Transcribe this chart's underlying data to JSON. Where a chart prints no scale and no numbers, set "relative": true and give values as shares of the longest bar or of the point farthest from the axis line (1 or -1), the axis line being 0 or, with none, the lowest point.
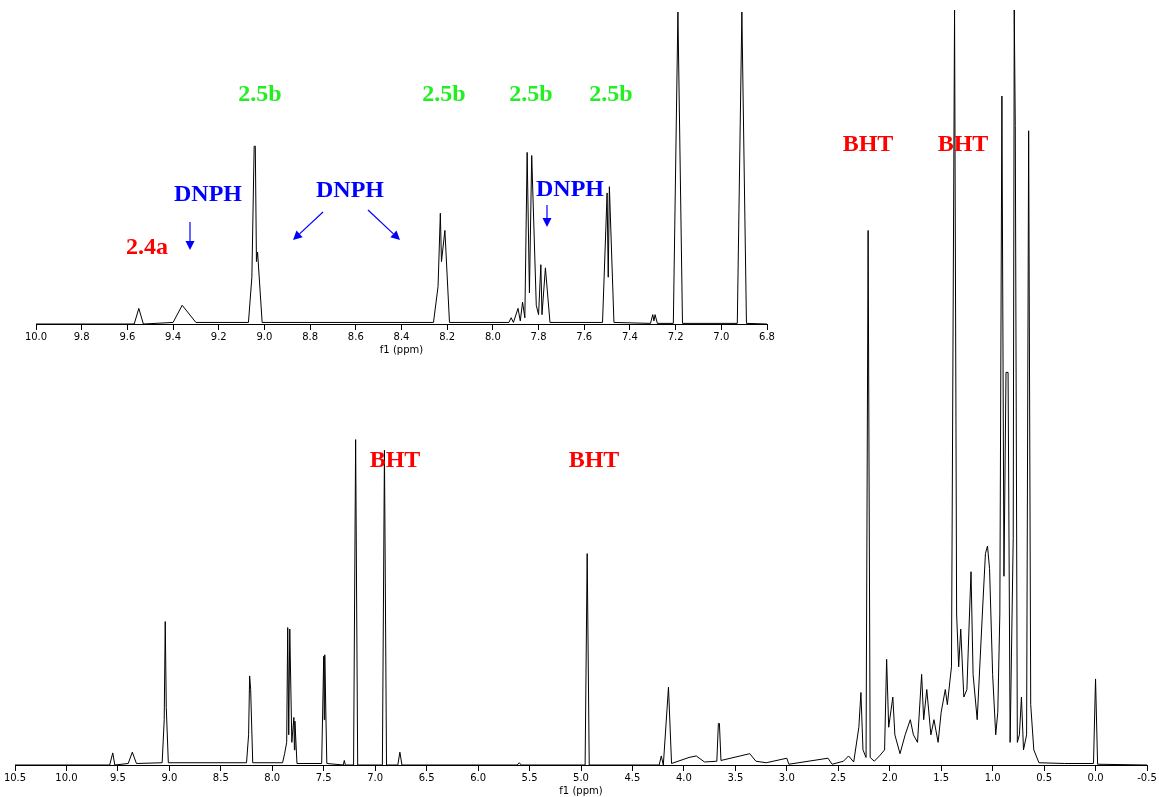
{
  "chart_data": [
    {
      "type": "line",
      "relative": true,
      "xlabel": "f1 (ppm)",
      "xlim": [
        10.0,
        6.8
      ],
      "xticks": [
        {
          "value": 10,
          "label": "10.0"
        },
        9.8,
        9.6,
        9.4,
        9.2,
        {
          "value": 9,
          "label": "9.0"
        },
        8.8,
        8.6,
        8.4,
        8.2,
        {
          "value": 8,
          "label": "8.0"
        },
        7.8,
        7.6,
        7.4,
        7.2,
        {
          "value": 7,
          "label": "7.0"
        },
        6.8
      ],
      "x": [
        10.0,
        9.57,
        9.55,
        9.53,
        9.4,
        9.36,
        9.3,
        9.07,
        9.055,
        9.045,
        9.04,
        9.035,
        9.03,
        9.01,
        8.26,
        8.24,
        8.23,
        8.225,
        8.21,
        8.19,
        7.93,
        7.92,
        7.91,
        7.89,
        7.88,
        7.87,
        7.86,
        7.85,
        7.84,
        7.83,
        7.81,
        7.8,
        7.79,
        7.785,
        7.77,
        7.75,
        7.52,
        7.5,
        7.495,
        7.49,
        7.47,
        7.31,
        7.3,
        7.295,
        7.29,
        7.28,
        7.21,
        7.19,
        7.17,
        6.93,
        6.91,
        6.89,
        6.8
      ],
      "series": [
        {
          "color": "#000000",
          "values": [
            0,
            0,
            0.05,
            0,
            0.005,
            0.06,
            0.005,
            0.005,
            0.15,
            0.57,
            0.57,
            0.2,
            0.23,
            0.005,
            0.005,
            0.12,
            0.355,
            0.2,
            0.3,
            0.005,
            0.005,
            0.02,
            0.005,
            0.05,
            0.01,
            0.07,
            0.02,
            0.55,
            0.1,
            0.54,
            0.06,
            0.03,
            0.19,
            0.03,
            0.18,
            0.005,
            0.005,
            0.42,
            0.15,
            0.44,
            0.005,
            0.002,
            0.03,
            0.01,
            0.03,
            0.002,
            0.002,
            1.0,
            0.002,
            0.002,
            1.0,
            0.002,
            0
          ]
        }
      ],
      "annotations": [
        "2.4a",
        "DNPH",
        "DNPH",
        "DNPH",
        "2.5b",
        "2.5b",
        "2.5b",
        "2.5b"
      ]
    },
    {
      "type": "line",
      "relative": true,
      "xlabel": "f1 (ppm)",
      "xlim": [
        10.5,
        -0.5
      ],
      "xticks": [
        10.5,
        {
          "value": 10,
          "label": "10.0"
        },
        9.5,
        {
          "value": 9,
          "label": "9.0"
        },
        8.5,
        {
          "value": 8,
          "label": "8.0"
        },
        7.5,
        {
          "value": 7,
          "label": "7.0"
        },
        6.5,
        {
          "value": 6,
          "label": "6.0"
        },
        5.5,
        {
          "value": 5,
          "label": "5.0"
        },
        4.5,
        {
          "value": 4,
          "label": "4.0"
        },
        3.5,
        {
          "value": 3,
          "label": "3.0"
        },
        2.5,
        {
          "value": 2,
          "label": "2.0"
        },
        1.5,
        {
          "value": 1,
          "label": "1.0"
        },
        0.5,
        {
          "value": 0,
          "label": "0.0"
        },
        -0.5
      ],
      "x": [
        10.5,
        9.58,
        9.55,
        9.53,
        9.4,
        9.36,
        9.32,
        9.07,
        9.05,
        9.04,
        9.03,
        9.01,
        8.25,
        8.23,
        8.22,
        8.21,
        8.19,
        7.9,
        7.88,
        7.86,
        7.85,
        7.84,
        7.83,
        7.81,
        7.79,
        7.785,
        7.78,
        7.76,
        7.52,
        7.5,
        7.495,
        7.49,
        7.47,
        7.31,
        7.3,
        7.29,
        7.21,
        7.19,
        7.17,
        6.93,
        6.91,
        6.89,
        6.78,
        6.76,
        6.74,
        5.62,
        5.6,
        5.58,
        4.96,
        4.94,
        4.92,
        4.24,
        4.22,
        4.2,
        4.15,
        4.12,
        3.95,
        3.88,
        3.8,
        3.68,
        3.665,
        3.655,
        3.64,
        3.36,
        3.3,
        3.2,
        3.0,
        2.98,
        2.6,
        2.56,
        2.45,
        2.4,
        2.35,
        2.3,
        2.28,
        2.26,
        2.23,
        2.21,
        2.19,
        2.15,
        2.1,
        2.05,
        2.03,
        2.01,
        1.97,
        1.95,
        1.9,
        1.85,
        1.8,
        1.77,
        1.73,
        1.69,
        1.67,
        1.64,
        1.6,
        1.57,
        1.53,
        1.5,
        1.46,
        1.44,
        1.4,
        1.37,
        1.35,
        1.33,
        1.31,
        1.28,
        1.25,
        1.23,
        1.21,
        1.19,
        1.15,
        1.1,
        1.07,
        1.05,
        1.03,
        1.0,
        0.97,
        0.95,
        0.93,
        0.91,
        0.89,
        0.87,
        0.85,
        0.83,
        0.8,
        0.79,
        0.78,
        0.76,
        0.74,
        0.72,
        0.7,
        0.67,
        0.65,
        0.63,
        0.6,
        0.55,
        0.3,
        0.02,
        0.0,
        -0.02,
        -0.5
      ],
      "series": [
        {
          "color": "#000000",
          "values": [
            0,
            0,
            0.016,
            0,
            0.002,
            0.017,
            0.002,
            0.003,
            0.06,
            0.19,
            0.076,
            0.003,
            0.003,
            0.04,
            0.118,
            0.1,
            0.003,
            0.003,
            0.015,
            0.03,
            0.182,
            0.04,
            0.18,
            0.03,
            0.063,
            0.02,
            0.058,
            0.002,
            0.002,
            0.144,
            0.06,
            0.146,
            0.002,
            0,
            0.006,
            0,
            0,
            0.431,
            0,
            0,
            0.417,
            0,
            0,
            0.017,
            0,
            0,
            0.003,
            0,
            0,
            0.28,
            0,
            0,
            0.012,
            0,
            0.103,
            0.002,
            0.01,
            0.012,
            0.004,
            0.005,
            0.055,
            0.055,
            0.006,
            0.015,
            0.005,
            0.003,
            0.009,
            0.001,
            0.009,
            0.001,
            0.005,
            0.012,
            0.004,
            0.05,
            0.096,
            0.02,
            0.01,
            0.708,
            0.01,
            0.005,
            0.012,
            0.02,
            0.14,
            0.05,
            0.09,
            0.04,
            0.015,
            0.04,
            0.06,
            0.04,
            0.03,
            0.12,
            0.06,
            0.1,
            0.04,
            0.06,
            0.03,
            0.07,
            0.1,
            0.08,
            0.13,
            1.0,
            0.2,
            0.13,
            0.18,
            0.09,
            0.1,
            0.18,
            0.256,
            0.12,
            0.06,
            0.2,
            0.28,
            0.29,
            0.26,
            0.12,
            0.04,
            0.07,
            0.2,
            0.886,
            0.25,
            0.52,
            0.52,
            0.03,
            0.3,
            1.0,
            0.847,
            0.03,
            0.04,
            0.09,
            0.02,
            0.04,
            0.84,
            0.08,
            0.02,
            0.003,
            0.002,
            0.002,
            0.114,
            0.001,
            0
          ]
        }
      ],
      "annotations": [
        "BHT",
        "BHT",
        "BHT",
        "BHT"
      ]
    }
  ]
}
